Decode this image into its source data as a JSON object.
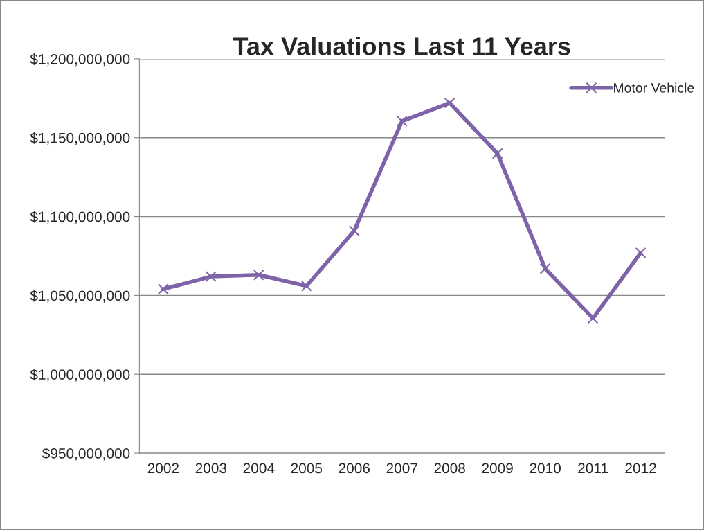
{
  "chart_data": {
    "type": "line",
    "title": "Tax Valuations Last 11 Years",
    "categories": [
      "2002",
      "2003",
      "2004",
      "2005",
      "2006",
      "2007",
      "2008",
      "2009",
      "2010",
      "2011",
      "2012"
    ],
    "series": [
      {
        "name": "Motor Vehicle",
        "color": "#7f63a8",
        "values": [
          1054000000,
          1062000000,
          1063000000,
          1056000000,
          1091000000,
          1160500000,
          1172000000,
          1140000000,
          1067000000,
          1035500000,
          1077000000
        ]
      }
    ],
    "ylim": [
      950000000,
      1200000000
    ],
    "yticks": [
      {
        "value": 950000000,
        "label": "$950,000,000"
      },
      {
        "value": 1000000000,
        "label": "$1,000,000,000"
      },
      {
        "value": 1050000000,
        "label": "$1,050,000,000"
      },
      {
        "value": 1100000000,
        "label": "$1,100,000,000"
      },
      {
        "value": 1150000000,
        "label": "$1,150,000,000"
      },
      {
        "value": 1200000000,
        "label": "$1,200,000,000"
      }
    ],
    "grid": "y",
    "legend": "top right",
    "marker": "cross",
    "line_style": "solid"
  }
}
